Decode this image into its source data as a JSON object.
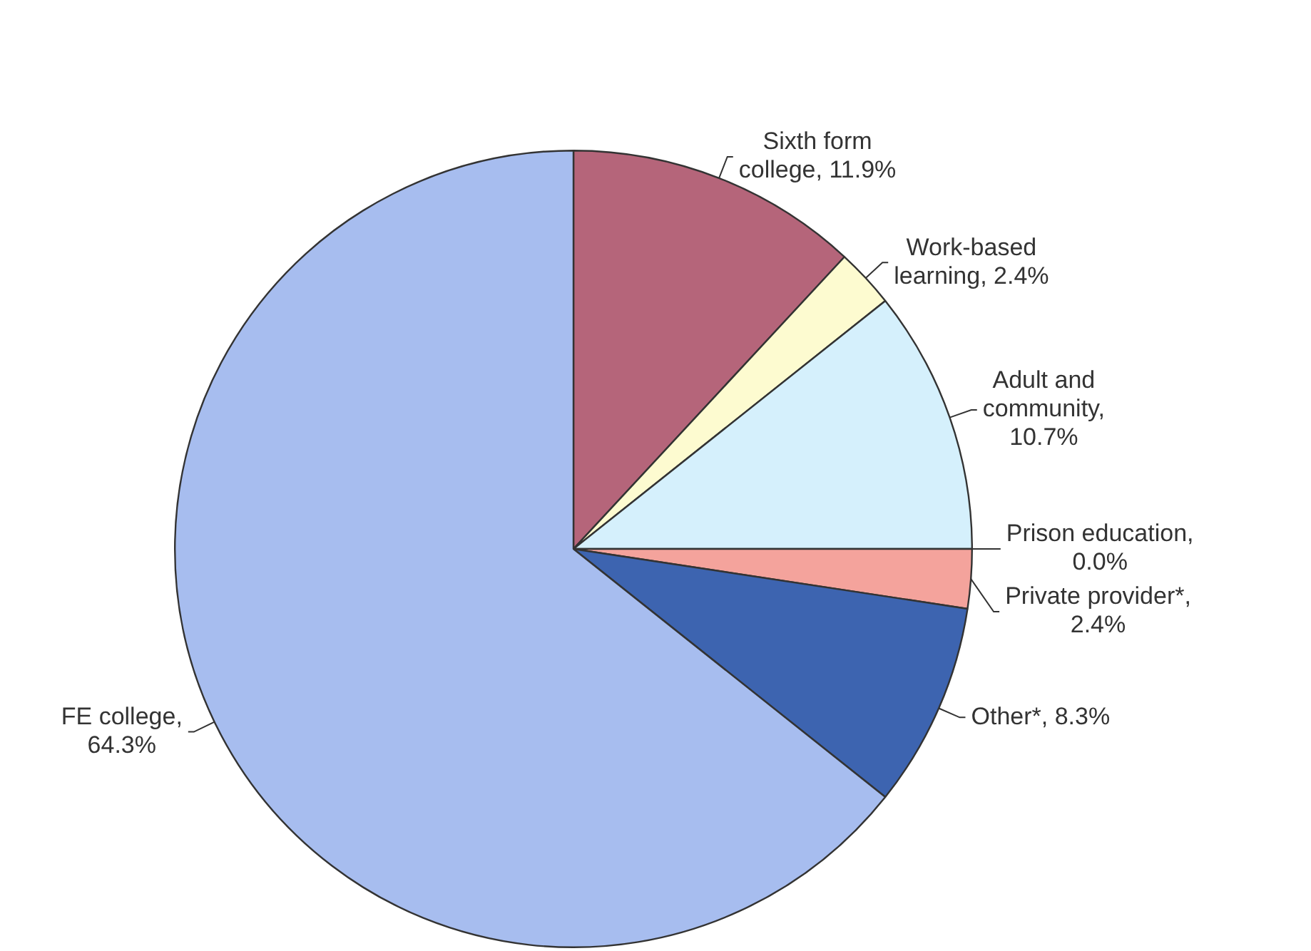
{
  "chart_data": {
    "type": "pie",
    "categories": [
      "Sixth form college, 11.9%",
      "Work-based learning, 2.4%",
      "Adult and community, 10.7%",
      "Prison education, 0.0%",
      "Private provider*, 2.4%",
      "Other*, 8.3%",
      "FE college, 64.3%"
    ],
    "values": [
      11.9,
      2.4,
      10.7,
      0.0,
      2.4,
      8.3,
      64.3
    ],
    "colors": [
      "#b5657a",
      "#fdfbd0",
      "#d5f0fc",
      "#e8e8e8",
      "#f4a39c",
      "#3d64b0",
      "#a7bdef"
    ]
  }
}
